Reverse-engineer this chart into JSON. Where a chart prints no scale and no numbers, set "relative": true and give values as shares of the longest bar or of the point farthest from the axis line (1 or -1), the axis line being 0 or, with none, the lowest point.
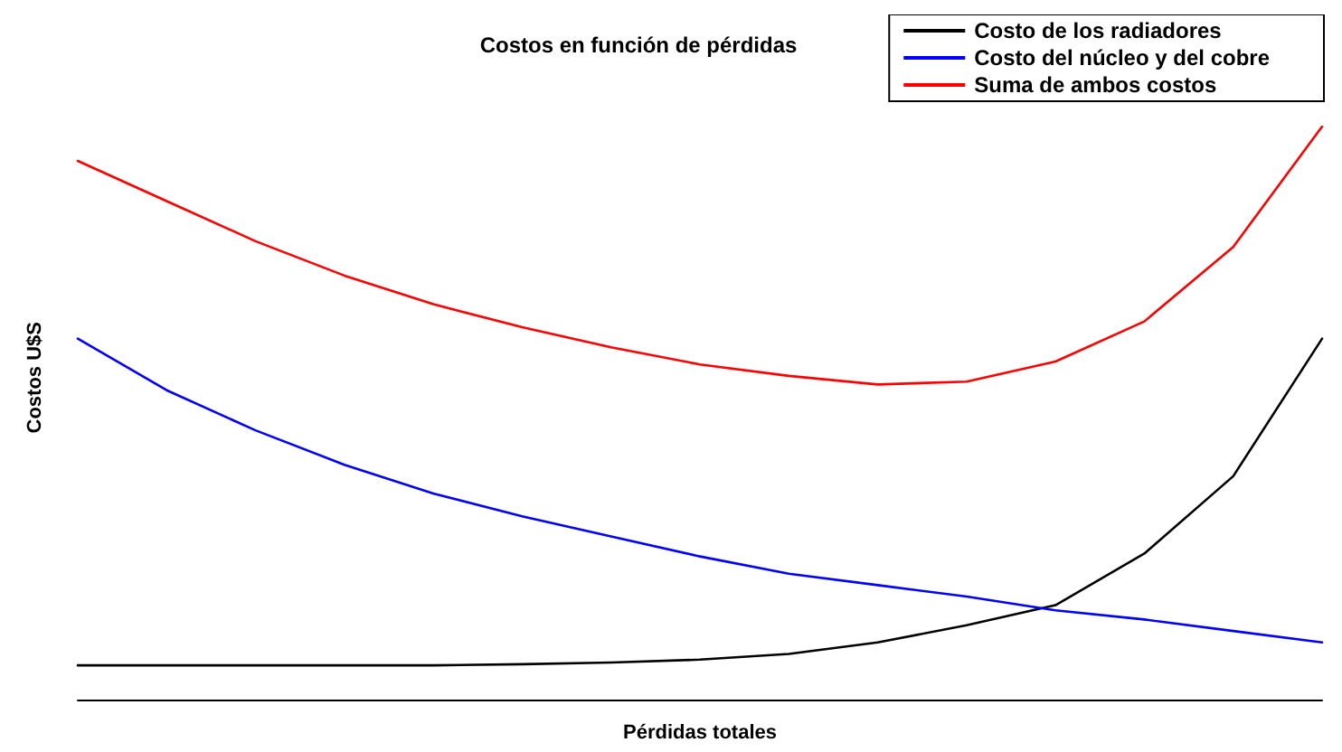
{
  "chart_data": {
    "type": "line",
    "title": "Costos en función de pérdidas",
    "xlabel": "Pérdidas totales",
    "ylabel": "Costos U$S",
    "relative": true,
    "legend": "top right",
    "grid": false,
    "marker": "none",
    "line_style": "solid",
    "categories": [
      null,
      null,
      null,
      null,
      null,
      null,
      null,
      null,
      null,
      null,
      null,
      null,
      null,
      null,
      null
    ],
    "series": [
      {
        "name": "Costo de los radiadores",
        "color": "#000000",
        "values": [
          0.06,
          0.06,
          0.06,
          0.06,
          0.06,
          0.062,
          0.065,
          0.07,
          0.08,
          0.1,
          0.13,
          0.165,
          0.255,
          0.39,
          0.63
        ]
      },
      {
        "name": "Costo del núcleo y del cobre",
        "color": "#0000ff",
        "values": [
          0.63,
          0.54,
          0.47,
          0.41,
          0.36,
          0.32,
          0.285,
          0.25,
          0.22,
          0.2,
          0.18,
          0.156,
          0.14,
          0.12,
          0.1
        ]
      },
      {
        "name": "Suma de ambos costos",
        "color": "#ff0000",
        "values": [
          0.94,
          0.87,
          0.8,
          0.74,
          0.69,
          0.65,
          0.615,
          0.585,
          0.565,
          0.55,
          0.555,
          0.59,
          0.66,
          0.79,
          1
        ]
      }
    ]
  }
}
